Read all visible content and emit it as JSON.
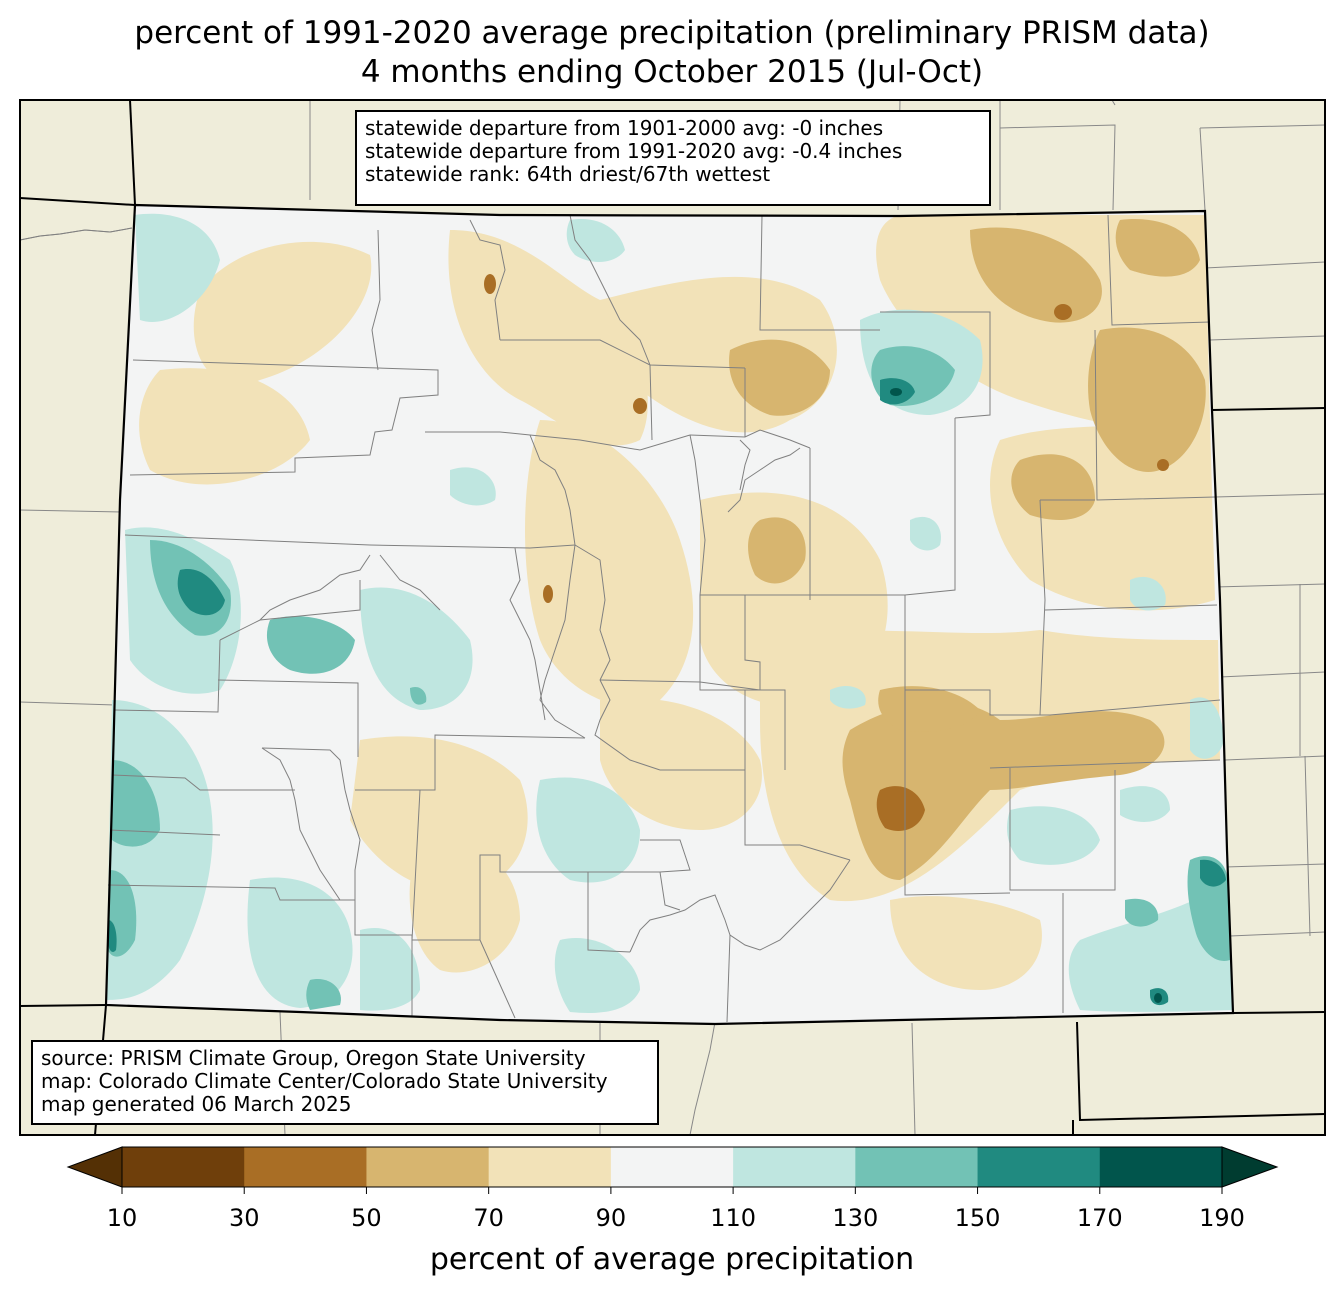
{
  "title": {
    "line1": "percent of 1991-2020 average precipitation (preliminary PRISM data)",
    "line2": "4 months ending October 2015 (Jul-Oct)"
  },
  "stats_box": {
    "line1": "statewide departure from 1901-2000 avg: -0 inches",
    "line2": "statewide departure from 1991-2020 avg: -0.4 inches",
    "line3": "statewide rank: 64th driest/67th wettest"
  },
  "source_box": {
    "line1": "source: PRISM Climate Group, Oregon State University",
    "line2": "map: Colorado Climate Center/Colorado State University",
    "line3": "map generated 06 March 2025"
  },
  "colorbar": {
    "label": "percent of average precipitation",
    "ticks": [
      "10",
      "30",
      "50",
      "70",
      "90",
      "110",
      "130",
      "150",
      "170",
      "190"
    ],
    "under_color": "#543005",
    "over_color": "#003c30",
    "colors": [
      "#8c510a",
      "#bf812d",
      "#dfc27d",
      "#f6e8c3",
      "#f5f5f5",
      "#c7eae5",
      "#80cdc1",
      "#35978f",
      "#01665e"
    ],
    "colors_rendered": [
      "#6f3f0b",
      "#a96e25",
      "#d7b56f",
      "#f2e2b8",
      "#f3f4f4",
      "#bfe6e0",
      "#72c2b5",
      "#208a80",
      "#01554c"
    ]
  },
  "map_colors": {
    "background_states": "#efedda",
    "state_border": "#000000",
    "county_border": "#808080"
  }
}
